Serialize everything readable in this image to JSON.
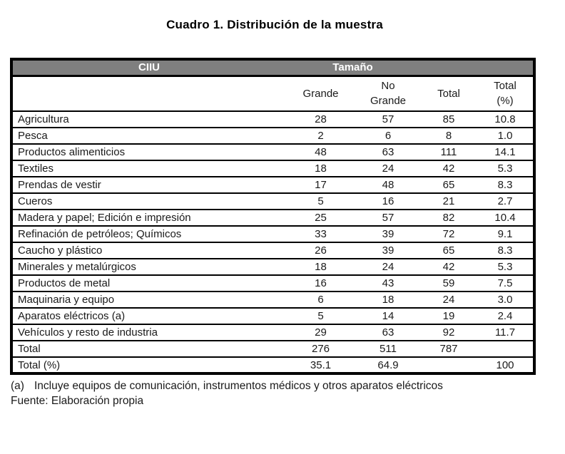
{
  "title": "Cuadro 1. Distribución de la muestra",
  "table": {
    "group_headers": [
      {
        "label": "CIIU"
      },
      {
        "label": "Tamaño"
      }
    ],
    "columns": [
      "",
      "Grande",
      "No\nGrande",
      "Total",
      "Total\n(%)"
    ],
    "rows": [
      [
        "Agricultura",
        "28",
        "57",
        "85",
        "10.8"
      ],
      [
        "Pesca",
        "2",
        "6",
        "8",
        "1.0"
      ],
      [
        "Productos alimenticios",
        "48",
        "63",
        "111",
        "14.1"
      ],
      [
        "Textiles",
        "18",
        "24",
        "42",
        "5.3"
      ],
      [
        "Prendas de vestir",
        "17",
        "48",
        "65",
        "8.3"
      ],
      [
        "Cueros",
        "5",
        "16",
        "21",
        "2.7"
      ],
      [
        "Madera y papel; Edición e impresión",
        "25",
        "57",
        "82",
        "10.4"
      ],
      [
        "Refinación de petróleos; Químicos",
        "33",
        "39",
        "72",
        "9.1"
      ],
      [
        "Caucho y plástico",
        "26",
        "39",
        "65",
        "8.3"
      ],
      [
        "Minerales y metalúrgicos",
        "18",
        "24",
        "42",
        "5.3"
      ],
      [
        "Productos de metal",
        "16",
        "43",
        "59",
        "7.5"
      ],
      [
        "Maquinaria y equipo",
        "6",
        "18",
        "24",
        "3.0"
      ],
      [
        "Aparatos eléctricos (a)",
        "5",
        "14",
        "19",
        "2.4"
      ],
      [
        "Vehículos y resto de industria",
        "29",
        "63",
        "92",
        "11.7"
      ],
      [
        "Total",
        "276",
        "511",
        "787",
        ""
      ],
      [
        "Total (%)",
        "35.1",
        "64.9",
        "",
        "100"
      ]
    ]
  },
  "footnote": {
    "marker": "(a)",
    "text": "Incluye equipos de comunicación, instrumentos médicos y otros aparatos eléctricos"
  },
  "source": "Fuente: Elaboración propia",
  "colors": {
    "header_bg": "#7f7f7f",
    "header_text": "#ffffff",
    "border_color": "#000000",
    "text_color": "#1a1a1a",
    "page_bg": "#ffffff"
  }
}
